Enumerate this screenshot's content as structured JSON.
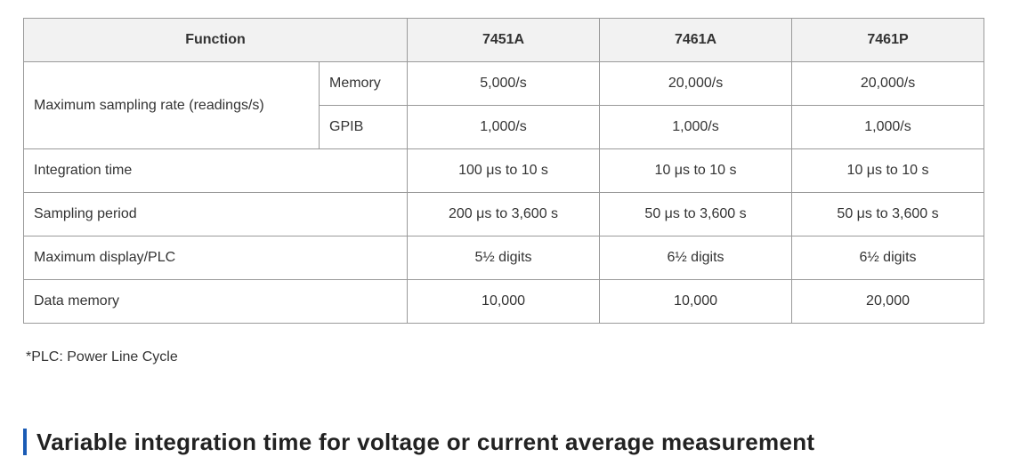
{
  "table": {
    "header": [
      "Function",
      "7451A",
      "7461A",
      "7461P"
    ],
    "sampling_rate": {
      "label": "Maximum sampling rate (readings/s)",
      "rows": [
        [
          "Memory",
          "5,000/s",
          "20,000/s",
          "20,000/s"
        ],
        [
          "GPIB",
          "1,000/s",
          "1,000/s",
          "1,000/s"
        ]
      ]
    },
    "rows": [
      [
        "Integration time",
        "100 μs to 10 s",
        "10 μs to 10 s",
        "10 μs to 10 s"
      ],
      [
        "Sampling period",
        "200 μs to 3,600 s",
        "50 μs to 3,600 s",
        "50 μs to 3,600 s"
      ],
      [
        "Maximum display/PLC",
        "5½ digits",
        "6½ digits",
        "6½ digits"
      ],
      [
        "Data memory",
        "10,000",
        "10,000",
        "20,000"
      ]
    ]
  },
  "footnote": "*PLC: Power Line Cycle",
  "heading": "Variable integration time for voltage or current average measurement"
}
